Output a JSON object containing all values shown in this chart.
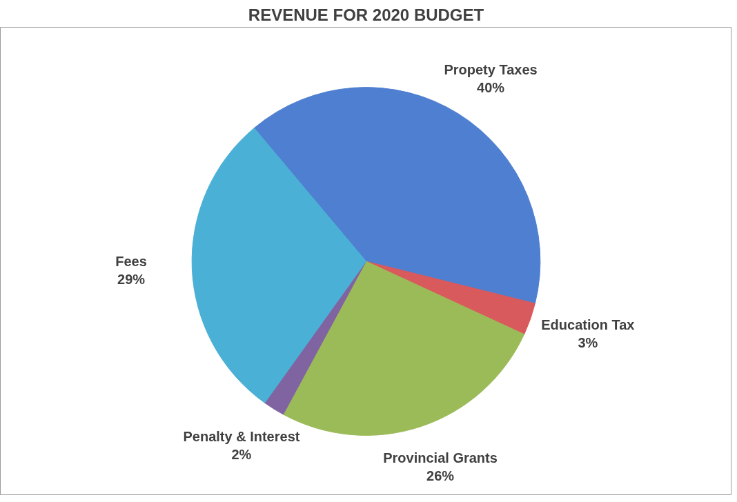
{
  "chart_data": {
    "type": "pie",
    "title": "REVENUE FOR 2020 BUDGET",
    "categories": [
      "Propety Taxes",
      "Education Tax",
      "Provincial Grants",
      "Penalty & Interest",
      "Fees"
    ],
    "values": [
      40,
      3,
      26,
      2,
      29
    ],
    "value_labels": [
      "40%",
      "3%",
      "26%",
      "2%",
      "29%"
    ],
    "colors": [
      "#4f7fd0",
      "#d95a5c",
      "#9bbb59",
      "#8064a2",
      "#4bb0d6"
    ]
  }
}
